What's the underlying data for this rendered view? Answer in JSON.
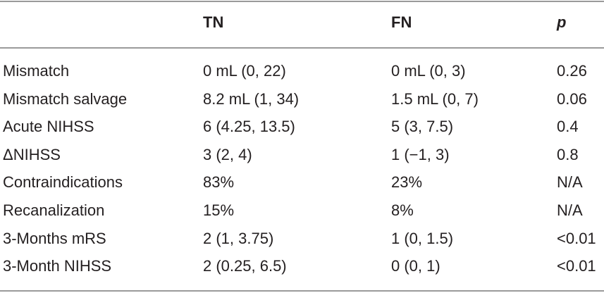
{
  "table": {
    "columns": [
      "TN",
      "FN",
      "p"
    ],
    "rows": [
      [
        "Mismatch",
        "0 mL (0, 22)",
        "0 mL (0, 3)",
        "0.26"
      ],
      [
        "Mismatch salvage",
        "8.2 mL (1, 34)",
        "1.5 mL (0, 7)",
        "0.06"
      ],
      [
        "Acute NIHSS",
        "6 (4.25, 13.5)",
        "5 (3, 7.5)",
        "0.4"
      ],
      [
        "ΔNIHSS",
        "3 (2, 4)",
        "1 (−1, 3)",
        "0.8"
      ],
      [
        "Contraindications",
        "83%",
        "23%",
        "N/A"
      ],
      [
        "Recanalization",
        "15%",
        "8%",
        "N/A"
      ],
      [
        "3-Months mRS",
        "2 (1, 3.75)",
        "1 (0, 1.5)",
        "<0.01"
      ],
      [
        "3-Month NIHSS",
        "2 (0.25, 6.5)",
        "0 (0, 1)",
        "<0.01"
      ]
    ]
  }
}
